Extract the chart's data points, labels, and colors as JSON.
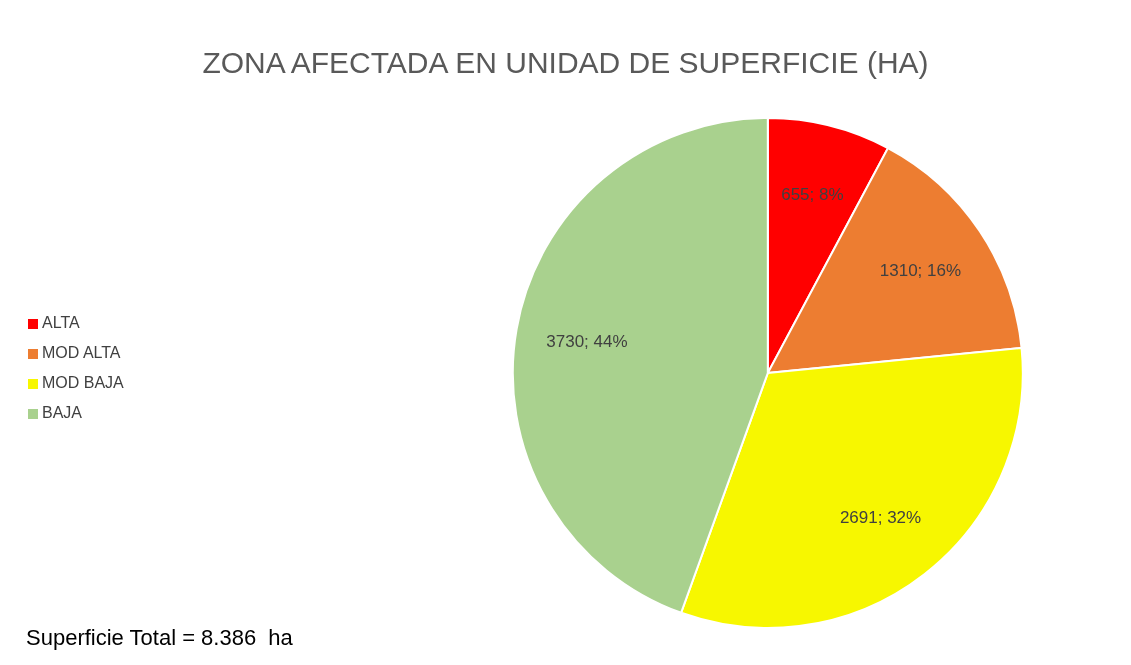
{
  "chart_data": {
    "type": "pie",
    "title": "ZONA AFECTADA EN UNIDAD DE SUPERFICIE (HA)",
    "categories": [
      "ALTA",
      "MOD ALTA",
      "MOD BAJA",
      "BAJA"
    ],
    "values": [
      655,
      1310,
      2691,
      3730
    ],
    "colors": [
      "#ff0000",
      "#ed7d31",
      "#f7f700",
      "#a9d18e"
    ],
    "value_labels": [
      "655; 8%",
      "1310; 16%",
      "2691; 32%",
      "3730; 44%"
    ],
    "legend": "left",
    "annotations": [
      "Superficie Total = 8.386  ha"
    ]
  }
}
